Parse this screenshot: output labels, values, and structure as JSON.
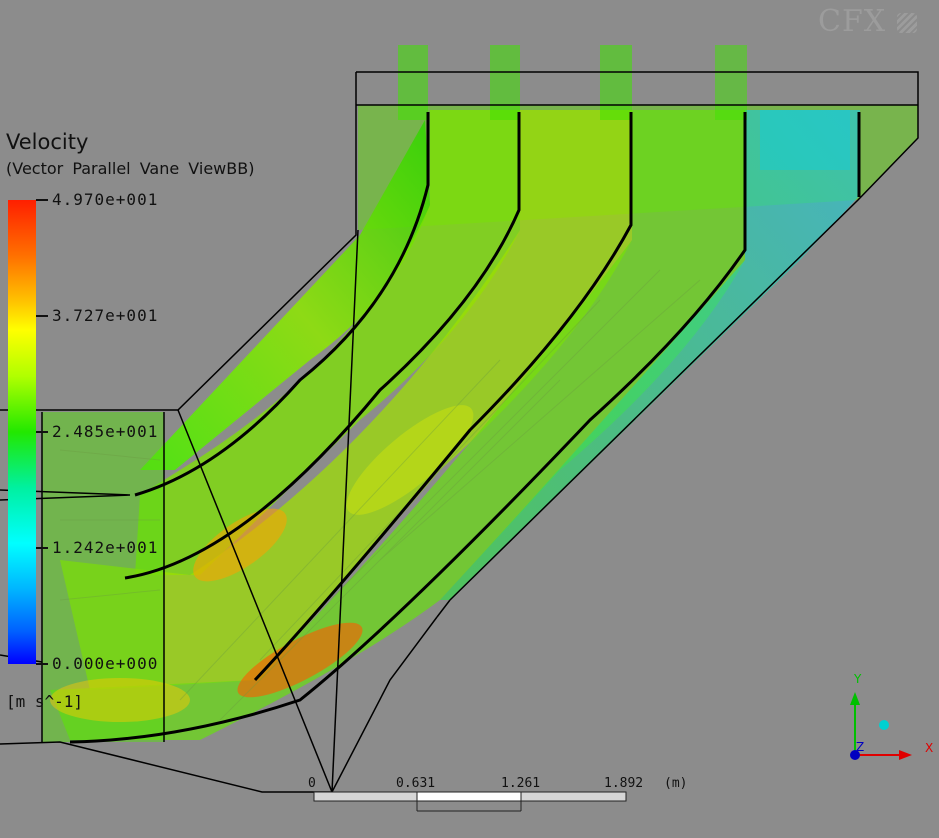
{
  "brand": {
    "logo_text": "CFX",
    "logo_icon": "ansys-logo-icon"
  },
  "legend": {
    "title": "Velocity",
    "subtitle": "(Vector Parallel Vane ViewBB)",
    "ticks": [
      "4.970e+001",
      "3.727e+001",
      "2.485e+001",
      "1.242e+001",
      "0.000e+000"
    ],
    "units": "[m s^-1]"
  },
  "scale_bar": {
    "labels": [
      "0",
      "0.631",
      "1.261",
      "1.892"
    ],
    "unit": "(m)"
  },
  "axes": {
    "y": "Y",
    "x": "X",
    "z": "Z"
  },
  "colors": {
    "background": "#8c8c8c",
    "y_axis": "#00c000",
    "x_axis": "#e00000",
    "z_axis": "#0000c0",
    "marker": "#00d0d0"
  }
}
